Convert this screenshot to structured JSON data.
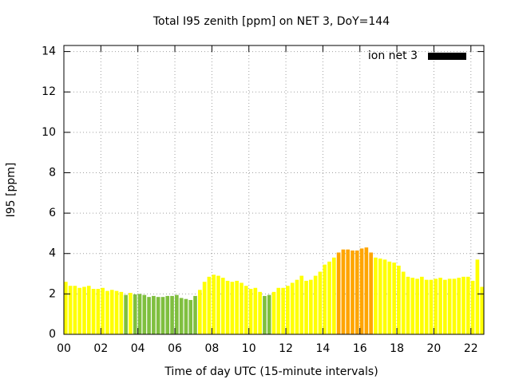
{
  "chart_data": {
    "type": "bar",
    "title": "Total I95 zenith [ppm] on NET 3, DoY=144",
    "x_label": "Time of day UTC (15-minute intervals)",
    "y_label": "I95 [ppm]",
    "x": [
      0,
      0.25,
      0.5,
      0.75,
      1,
      1.25,
      1.5,
      1.75,
      2,
      2.25,
      2.5,
      2.75,
      3,
      3.25,
      3.5,
      3.75,
      4,
      4.25,
      4.5,
      4.75,
      5,
      5.25,
      5.5,
      5.75,
      6,
      6.25,
      6.5,
      6.75,
      7,
      7.25,
      7.5,
      7.75,
      8,
      8.25,
      8.5,
      8.75,
      9,
      9.25,
      9.5,
      9.75,
      10,
      10.25,
      10.5,
      10.75,
      11,
      11.25,
      11.5,
      11.75,
      12,
      12.25,
      12.5,
      12.75,
      13,
      13.25,
      13.5,
      13.75,
      14,
      14.25,
      14.5,
      14.75,
      15,
      15.25,
      15.5,
      15.75,
      16,
      16.25,
      16.5,
      16.75,
      17,
      17.25,
      17.5,
      17.75,
      18,
      18.25,
      18.5,
      18.75,
      19,
      19.25,
      19.5,
      19.75,
      20,
      20.25,
      20.5,
      20.75,
      21,
      21.25,
      21.5,
      21.75,
      22,
      22.25,
      22.5
    ],
    "series": [
      {
        "name": "ion net 3",
        "color": "#000000",
        "values": [
          2.6,
          2.4,
          2.4,
          2.3,
          2.35,
          2.4,
          2.25,
          2.25,
          2.3,
          2.15,
          2.2,
          2.15,
          2.1,
          1.95,
          2.05,
          1.98,
          2.0,
          1.95,
          1.85,
          1.9,
          1.85,
          1.85,
          1.9,
          1.9,
          1.95,
          1.8,
          1.75,
          1.7,
          1.9,
          2.2,
          2.6,
          2.85,
          2.95,
          2.9,
          2.8,
          2.65,
          2.6,
          2.65,
          2.55,
          2.4,
          2.25,
          2.3,
          2.1,
          1.9,
          1.95,
          2.1,
          2.3,
          2.3,
          2.4,
          2.55,
          2.7,
          2.9,
          2.65,
          2.7,
          2.9,
          3.1,
          3.45,
          3.6,
          3.8,
          4.05,
          4.2,
          4.2,
          4.15,
          4.15,
          4.25,
          4.3,
          4.05,
          3.8,
          3.75,
          3.7,
          3.6,
          3.55,
          3.4,
          3.1,
          2.85,
          2.8,
          2.75,
          2.85,
          2.7,
          2.7,
          2.75,
          2.8,
          2.7,
          2.75,
          2.75,
          2.8,
          2.85,
          2.85,
          2.65,
          3.7,
          2.35
        ],
        "colors": [
          "#ffff00",
          "#ffff00",
          "#ffff00",
          "#ffff00",
          "#ffff00",
          "#ffff00",
          "#ffff00",
          "#ffff00",
          "#ffff00",
          "#ffff00",
          "#ffff00",
          "#ffff00",
          "#ffff00",
          "#7fbf3f",
          "#ffff00",
          "#7fbf3f",
          "#7fbf3f",
          "#7fbf3f",
          "#7fbf3f",
          "#7fbf3f",
          "#7fbf3f",
          "#7fbf3f",
          "#7fbf3f",
          "#7fbf3f",
          "#7fbf3f",
          "#7fbf3f",
          "#7fbf3f",
          "#7fbf3f",
          "#7fbf3f",
          "#ffff00",
          "#ffff00",
          "#ffff00",
          "#ffff00",
          "#ffff00",
          "#ffff00",
          "#ffff00",
          "#ffff00",
          "#ffff00",
          "#ffff00",
          "#ffff00",
          "#ffff00",
          "#ffff00",
          "#ffff00",
          "#7fbf3f",
          "#7fbf3f",
          "#ffff00",
          "#ffff00",
          "#ffff00",
          "#ffff00",
          "#ffff00",
          "#ffff00",
          "#ffff00",
          "#ffff00",
          "#ffff00",
          "#ffff00",
          "#ffff00",
          "#ffff00",
          "#ffff00",
          "#ffff00",
          "#ffa500",
          "#ffa500",
          "#ffa500",
          "#ffa500",
          "#ffa500",
          "#ffa500",
          "#ffa500",
          "#ffa500",
          "#ffff00",
          "#ffff00",
          "#ffff00",
          "#ffff00",
          "#ffff00",
          "#ffff00",
          "#ffff00",
          "#ffff00",
          "#ffff00",
          "#ffff00",
          "#ffff00",
          "#ffff00",
          "#ffff00",
          "#ffff00",
          "#ffff00",
          "#ffff00",
          "#ffff00",
          "#ffff00",
          "#ffff00",
          "#ffff00",
          "#ffff00",
          "#ffff00",
          "#ffff00",
          "#ffff00"
        ]
      }
    ],
    "bar_width": 0.2,
    "xlim": [
      0,
      22.7
    ],
    "xticks": [
      {
        "value": 0,
        "label": "00"
      },
      {
        "value": 2,
        "label": "02"
      },
      {
        "value": 4,
        "label": "04"
      },
      {
        "value": 6,
        "label": "06"
      },
      {
        "value": 8,
        "label": "08"
      },
      {
        "value": 10,
        "label": "10"
      },
      {
        "value": 12,
        "label": "12"
      },
      {
        "value": 14,
        "label": "14"
      },
      {
        "value": 16,
        "label": "16"
      },
      {
        "value": 18,
        "label": "18"
      },
      {
        "value": 20,
        "label": "20"
      },
      {
        "value": 22,
        "label": "22"
      }
    ],
    "ylim": [
      0,
      14.3
    ],
    "yticks": [
      0,
      2,
      4,
      6,
      8,
      10,
      12,
      14
    ],
    "grid": true,
    "legend": "top-right"
  }
}
